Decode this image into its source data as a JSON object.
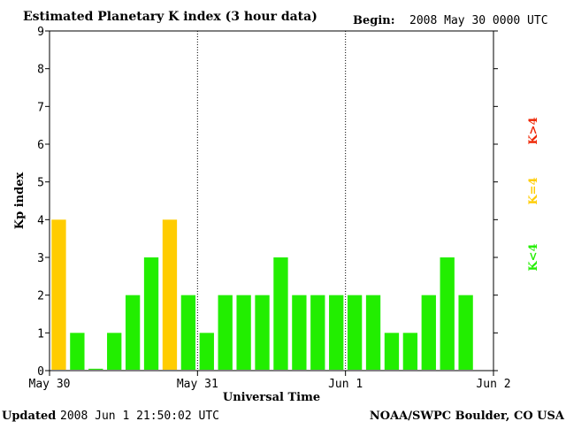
{
  "header": {
    "title": "Estimated Planetary K index (3 hour data)",
    "begin_label": "Begin:",
    "begin_value": "2008 May 30 0000 UTC"
  },
  "footer": {
    "updated_label": "Updated",
    "updated_value": "2008 Jun  1 21:50:02 UTC",
    "source": "NOAA/SWPC Boulder, CO USA"
  },
  "legend": {
    "k_gt4": "K>4",
    "k_eq4": "K=4",
    "k_lt4": "K<4"
  },
  "colors": {
    "k_lt4": "#22ee00",
    "k_eq4": "#ffcc00",
    "k_gt4": "#ee2200",
    "axis": "#000000"
  },
  "chart_data": {
    "type": "bar",
    "title": "Estimated Planetary K index (3 hour data)",
    "xlabel": "Universal Time",
    "ylabel": "Kp index",
    "ylim": [
      0,
      9
    ],
    "yticks": [
      "0",
      "1",
      "2",
      "3",
      "4",
      "5",
      "6",
      "7",
      "8",
      "9"
    ],
    "xticks": [
      "May 30",
      "May 31",
      "Jun 1",
      "Jun 2"
    ],
    "slots_per_tick": 8,
    "values": [
      4,
      1,
      0.05,
      1,
      2,
      3,
      4,
      2,
      1,
      2,
      2,
      2,
      3,
      2,
      2,
      2,
      2,
      2,
      1,
      1,
      2,
      3,
      2
    ],
    "grid": "dotted vertical lines at day boundaries",
    "legend_position": "right"
  }
}
